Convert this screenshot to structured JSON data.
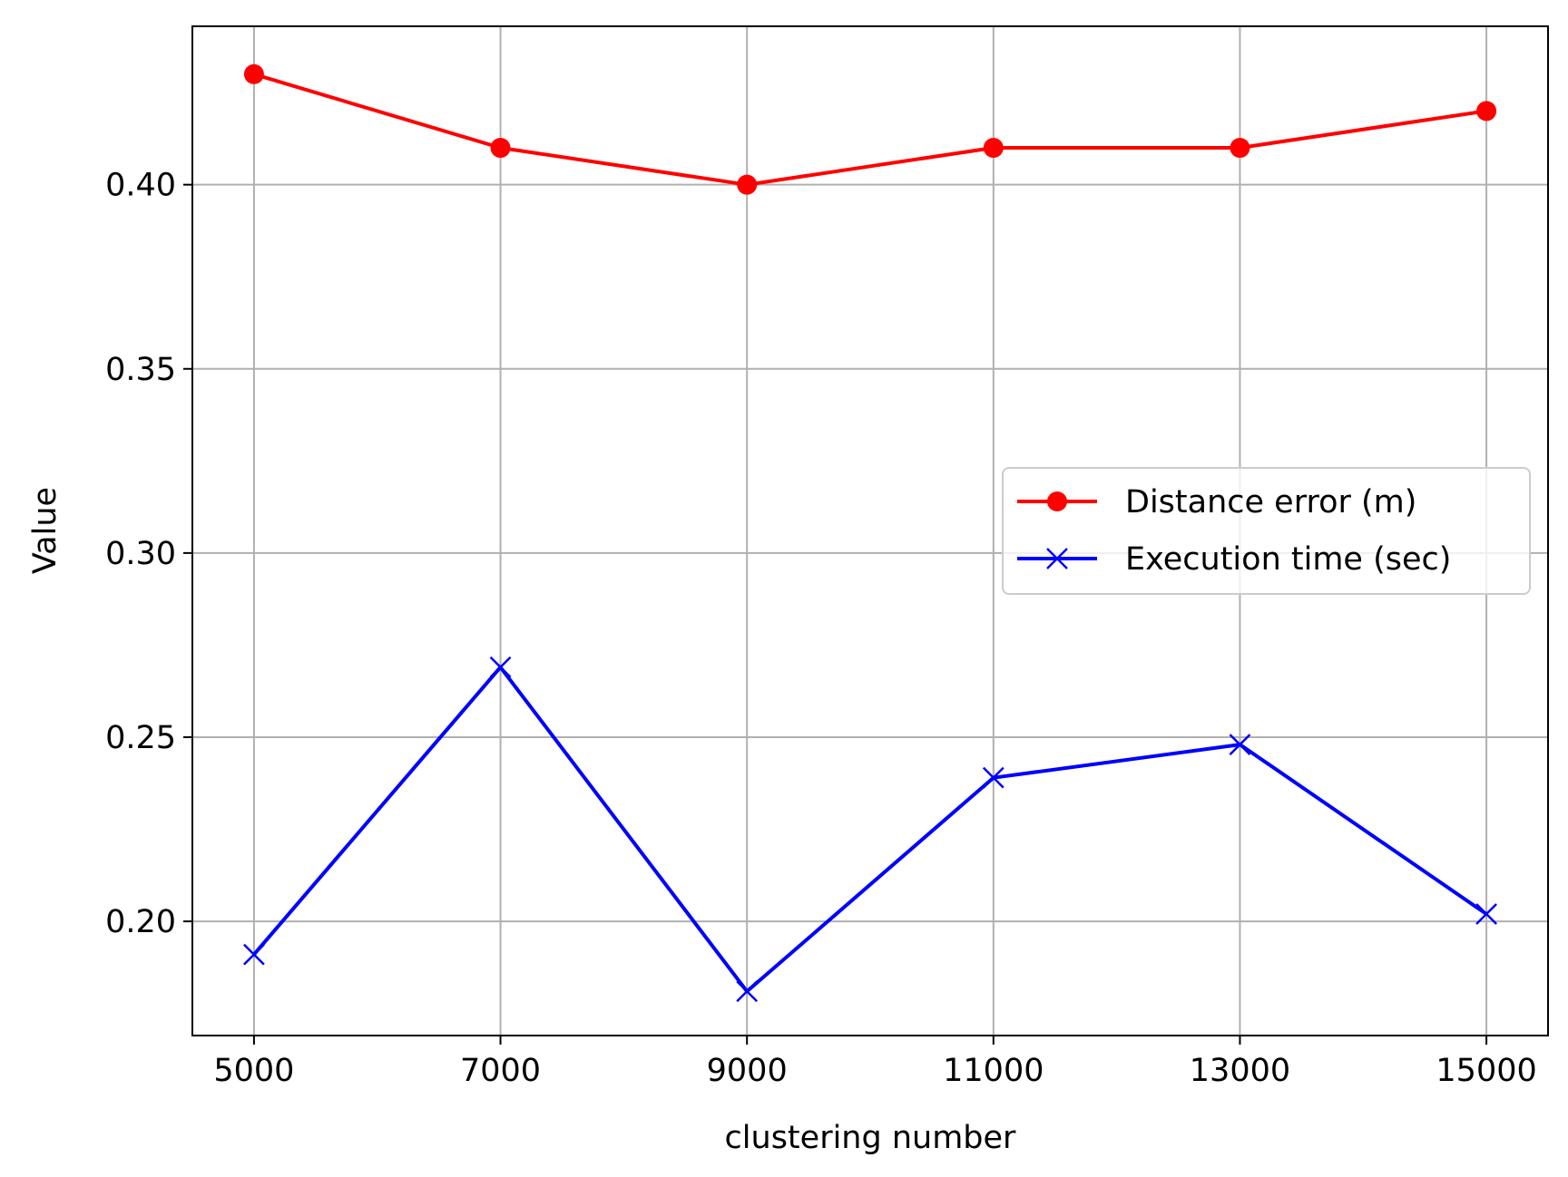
{
  "chart_data": {
    "type": "line",
    "title": "",
    "xlabel": "clustering number",
    "ylabel": "Value",
    "x": [
      5000,
      7000,
      9000,
      11000,
      13000,
      15000
    ],
    "x_ticks": [
      5000,
      7000,
      9000,
      11000,
      13000,
      15000
    ],
    "xlim": [
      4500,
      15500
    ],
    "y_ticks": [
      0.2,
      0.25,
      0.3,
      0.35,
      0.4
    ],
    "y_tick_labels": [
      "0.20",
      "0.25",
      "0.30",
      "0.35",
      "0.40"
    ],
    "ylim": [
      0.169,
      0.443
    ],
    "grid": true,
    "legend_position": "center-right",
    "series": [
      {
        "name": "Distance error (m)",
        "color": "#ff0000",
        "marker": "circle",
        "values": [
          0.43,
          0.41,
          0.4,
          0.41,
          0.41,
          0.42
        ]
      },
      {
        "name": "Execution time (sec)",
        "color": "#0000ff",
        "marker": "x",
        "values": [
          0.191,
          0.269,
          0.181,
          0.239,
          0.248,
          0.202
        ]
      }
    ]
  }
}
